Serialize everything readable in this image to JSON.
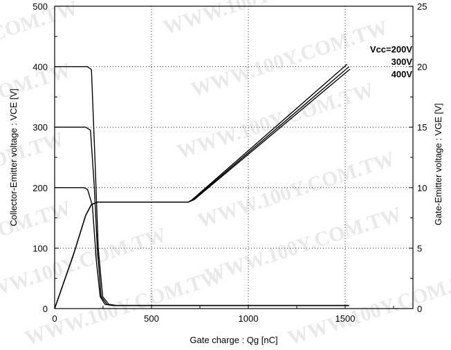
{
  "chart_data": {
    "type": "line",
    "xlabel": "Gate charge : Qg [nC]",
    "ylabel_left": "Collector-Emitter voltage : VCE [V]",
    "ylabel_right": "Gate-Emitter voltage : VGE [V]",
    "xlim": [
      0,
      1850
    ],
    "ylim_left": [
      0,
      500
    ],
    "ylim_right": [
      0,
      25
    ],
    "x_ticks": [
      0,
      500,
      1000,
      1500
    ],
    "y_left_ticks": [
      0,
      100,
      200,
      300,
      400,
      500
    ],
    "y_right_ticks": [
      0,
      5,
      10,
      15,
      20,
      25
    ],
    "x_tick_labels": [
      "0",
      "500",
      "1000",
      "1500"
    ],
    "y_left_tick_labels": [
      "0",
      "100",
      "200",
      "300",
      "400",
      "500"
    ],
    "y_right_tick_labels": [
      "0",
      "5",
      "10",
      "15",
      "20",
      "25"
    ],
    "grid": true,
    "legend": {
      "placement": "top-right",
      "entries": [
        "Vcc=200V",
        "300V",
        "400V"
      ]
    },
    "series": [
      {
        "name": "Vcc=200V",
        "axis": "left",
        "x": [
          0,
          150,
          170,
          195,
          215,
          235,
          260,
          300,
          1520
        ],
        "y": [
          200,
          200,
          197,
          170,
          80,
          20,
          7,
          5,
          5
        ]
      },
      {
        "name": "300V",
        "axis": "left",
        "x": [
          0,
          160,
          185,
          205,
          220,
          240,
          270,
          310,
          1520
        ],
        "y": [
          300,
          300,
          295,
          200,
          100,
          20,
          7,
          5,
          5
        ]
      },
      {
        "name": "400V",
        "axis": "left",
        "x": [
          0,
          170,
          190,
          208,
          225,
          248,
          280,
          320,
          1520
        ],
        "y": [
          400,
          400,
          395,
          250,
          100,
          20,
          7,
          5,
          5
        ]
      },
      {
        "name": "VGE (Vcc=200V)",
        "axis": "right",
        "x": [
          0,
          100,
          160,
          190,
          220,
          270,
          690,
          710,
          1510
        ],
        "y": [
          0,
          4.6,
          7.7,
          8.6,
          8.8,
          8.8,
          8.8,
          9.0,
          20.2
        ]
      },
      {
        "name": "VGE (Vcc=300V)",
        "axis": "right",
        "x": [
          0,
          100,
          160,
          190,
          220,
          270,
          690,
          715,
          1520
        ],
        "y": [
          0,
          4.6,
          7.7,
          8.6,
          8.8,
          8.8,
          8.8,
          9.0,
          20.0
        ]
      },
      {
        "name": "VGE (Vcc=400V)",
        "axis": "right",
        "x": [
          0,
          100,
          160,
          190,
          220,
          270,
          690,
          720,
          1525
        ],
        "y": [
          0,
          4.6,
          7.7,
          8.6,
          8.8,
          8.8,
          8.8,
          9.0,
          19.8
        ]
      }
    ]
  },
  "watermark": {
    "text_short": "COM.TW",
    "text_long": "WWW.100Y.COM.TW"
  }
}
